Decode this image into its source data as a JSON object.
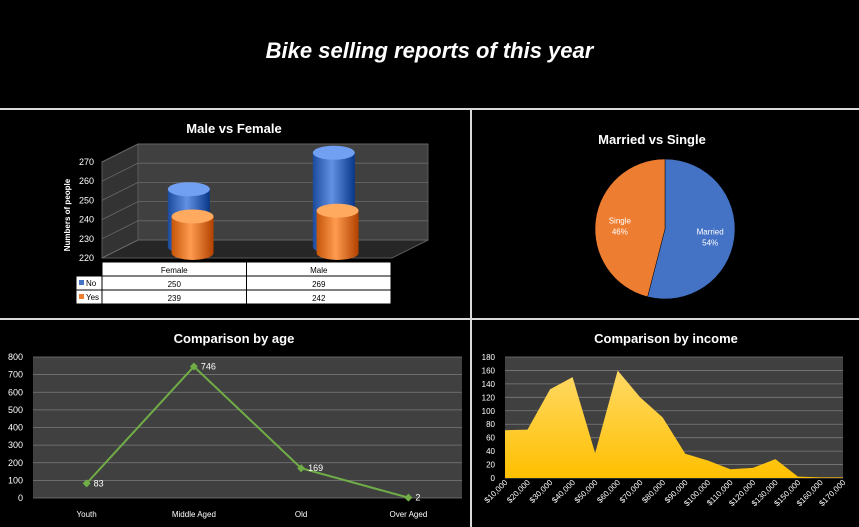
{
  "page": {
    "title": "Bike selling reports of this year"
  },
  "chart_data": [
    {
      "type": "bar",
      "title": "Male vs Female",
      "ylabel": "Numbers of people",
      "ylim": [
        220,
        270
      ],
      "yticks": [
        220,
        230,
        240,
        250,
        260,
        270
      ],
      "categories": [
        "Female",
        "Male"
      ],
      "series": [
        {
          "name": "No",
          "values": [
            250,
            269
          ],
          "color": "#4472c4"
        },
        {
          "name": "Yes",
          "values": [
            239,
            242
          ],
          "color": "#ed7d31"
        }
      ],
      "data_table": true,
      "style": "3d-cylinder"
    },
    {
      "type": "pie",
      "title": "Married vs Single",
      "slices": [
        {
          "label": "Married",
          "value": 54,
          "display": "54%",
          "color": "#4472c4"
        },
        {
          "label": "Single",
          "value": 46,
          "display": "46%",
          "color": "#ed7d31"
        }
      ]
    },
    {
      "type": "line",
      "title": "Comparison by age",
      "categories": [
        "Youth",
        "Middle Aged",
        "Old",
        "Over Aged"
      ],
      "values": [
        83,
        746,
        169,
        2
      ],
      "ylim": [
        0,
        800
      ],
      "yticks": [
        0,
        100,
        200,
        300,
        400,
        500,
        600,
        700,
        800
      ],
      "color": "#70ad47",
      "data_labels": true
    },
    {
      "type": "area",
      "title": "Comparison by income",
      "x": [
        "$10,000",
        "$20,000",
        "$30,000",
        "$40,000",
        "$50,000",
        "$60,000",
        "$70,000",
        "$80,000",
        "$90,000",
        "$100,000",
        "$110,000",
        "$120,000",
        "$130,000",
        "$150,000",
        "$160,000",
        "$170,000"
      ],
      "values": [
        71,
        72,
        132,
        150,
        37,
        160,
        120,
        90,
        36,
        26,
        13,
        15,
        28,
        2,
        1,
        1
      ],
      "ylim": [
        0,
        180
      ],
      "yticks": [
        0,
        20,
        40,
        60,
        80,
        100,
        120,
        140,
        160,
        180
      ],
      "color": "#ffc000"
    }
  ]
}
